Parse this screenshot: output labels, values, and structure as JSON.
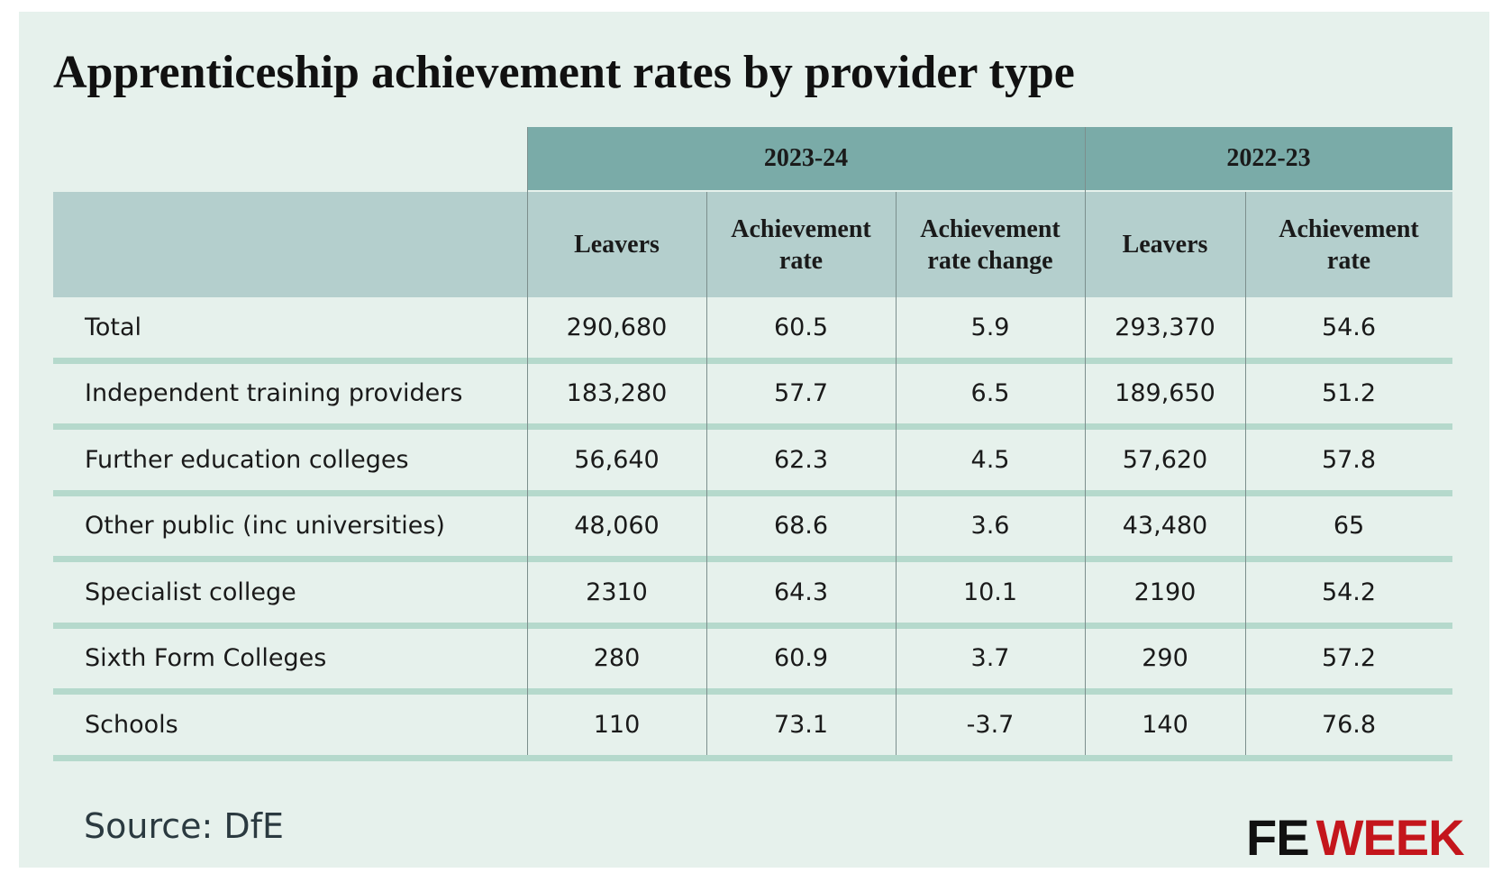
{
  "header": {
    "title": "Apprenticeship achievement rates by provider type"
  },
  "table": {
    "groups": [
      "2023-24",
      "2022-23"
    ],
    "columns": [
      "Leavers",
      "Achievement rate",
      "Achievement rate change",
      "Leavers",
      "Achievement rate"
    ],
    "rows": [
      [
        "Total",
        "290,680",
        "60.5",
        "5.9",
        "293,370",
        "54.6"
      ],
      [
        "Independent training providers",
        "183,280",
        "57.7",
        "6.5",
        "189,650",
        "51.2"
      ],
      [
        "Further education colleges",
        "56,640",
        "62.3",
        "4.5",
        "57,620",
        "57.8"
      ],
      [
        "Other public (inc universities)",
        "48,060",
        "68.6",
        "3.6",
        "43,480",
        "65"
      ],
      [
        "Specialist college",
        "2310",
        "64.3",
        "10.1",
        "2190",
        "54.2"
      ],
      [
        "Sixth Form Colleges",
        "280",
        "60.9",
        "3.7",
        "290",
        "57.2"
      ],
      [
        "Schools",
        "110",
        "73.1",
        "-3.7",
        "140",
        "76.8"
      ]
    ]
  },
  "footer": {
    "source": "Source: DfE",
    "logo": {
      "fe": "FE",
      "week": "WEEK"
    }
  }
}
